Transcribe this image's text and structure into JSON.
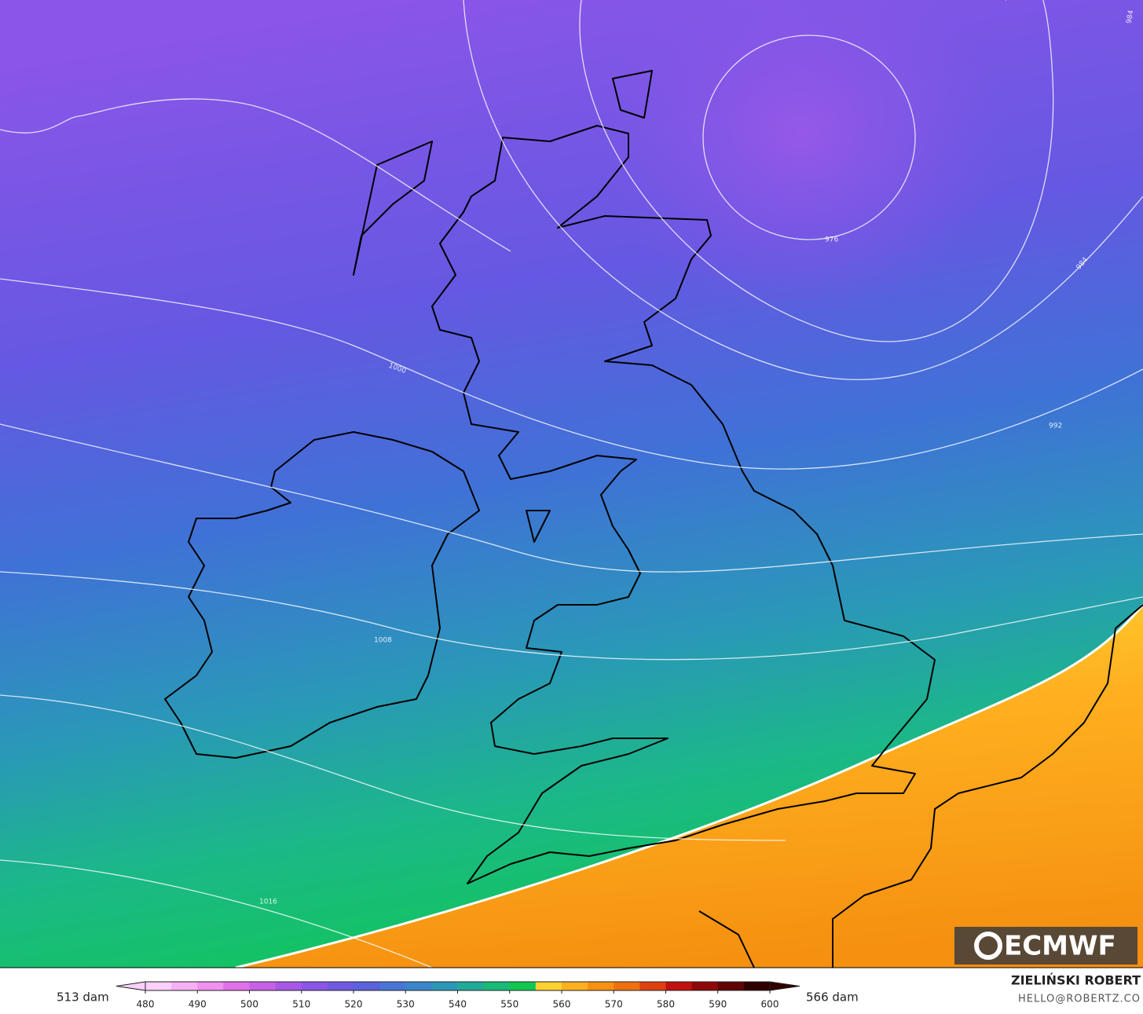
{
  "map": {
    "isobar_labels": [
      976,
      984,
      984,
      992,
      1000,
      1008,
      1016
    ],
    "logo": "ECMWF",
    "colorbar": {
      "min_label": "513 dam",
      "max_label": "566 dam",
      "ticks": [
        480,
        490,
        500,
        510,
        520,
        530,
        540,
        550,
        560,
        570,
        580,
        590,
        600
      ],
      "colors": [
        "#fbd0fb",
        "#f6b0f4",
        "#f090f0",
        "#e070ea",
        "#c860e8",
        "#a858e8",
        "#8a55e8",
        "#6e58e4",
        "#5a62de",
        "#4a74d8",
        "#3a86cc",
        "#2a98b8",
        "#20aa98",
        "#18ba78",
        "#10c850",
        "#ffd030",
        "#ffb020",
        "#f89010",
        "#f07010",
        "#e04010",
        "#c01010",
        "#900808",
        "#600404",
        "#300000"
      ]
    },
    "credit": {
      "author": "ZIELIŃSKI ROBERT",
      "contact": "HELLO@ROBERTZ.CO"
    }
  }
}
